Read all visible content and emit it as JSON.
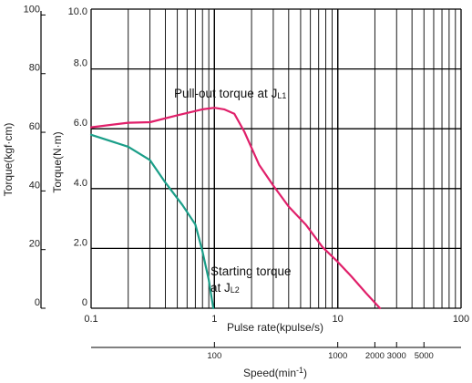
{
  "chart_data": {
    "type": "line",
    "x_scale": "log",
    "xlim": [
      0.1,
      100
    ],
    "ylim": [
      0,
      10
    ],
    "xlabel": "Pulse rate(kpulse/s)",
    "ylabel": "Torque(N·m)",
    "y2label": "Torque(kgf·cm)",
    "x2label": "Speed(min",
    "x2label_sup": "-1",
    "x2label_close": ")",
    "x_ticks": [
      "0.1",
      "1",
      "10",
      "100"
    ],
    "y_ticks": [
      "0",
      "2.0",
      "4.0",
      "6.0",
      "8.0",
      "10.0"
    ],
    "y_ticks_values": [
      0,
      2,
      4,
      6,
      8,
      10
    ],
    "y2_ticks": [
      "0",
      "20",
      "40",
      "60",
      "80",
      "100"
    ],
    "y2_ticks_values": [
      0,
      20,
      40,
      60,
      80,
      100
    ],
    "y2lim": [
      0,
      102
    ],
    "speed_ticks": [
      {
        "label": "100",
        "x_pulse": 1.0
      },
      {
        "label": "1000",
        "x_pulse": 10.0
      },
      {
        "label": "2000",
        "x_pulse": 20.0
      },
      {
        "label": "3000",
        "x_pulse": 30.0
      },
      {
        "label": "5000",
        "x_pulse": 50.0
      }
    ],
    "grid": true,
    "series": [
      {
        "name": "Pull-out torque at J",
        "subscript": "L1",
        "color": "#e0206a",
        "points": [
          [
            0.1,
            6.05
          ],
          [
            0.2,
            6.2
          ],
          [
            0.3,
            6.22
          ],
          [
            0.5,
            6.45
          ],
          [
            0.8,
            6.65
          ],
          [
            1.0,
            6.7
          ],
          [
            1.2,
            6.65
          ],
          [
            1.45,
            6.5
          ],
          [
            1.75,
            5.9
          ],
          [
            2.3,
            4.8
          ],
          [
            3.0,
            4.1
          ],
          [
            4.0,
            3.4
          ],
          [
            5.5,
            2.8
          ],
          [
            7.5,
            2.05
          ],
          [
            10.0,
            1.55
          ],
          [
            13.0,
            1.05
          ],
          [
            17.0,
            0.5
          ],
          [
            22.0,
            0.0
          ]
        ]
      },
      {
        "name": "Starting torque\nat J",
        "subscript": "L2",
        "color": "#1a9e88",
        "points": [
          [
            0.1,
            5.8
          ],
          [
            0.2,
            5.4
          ],
          [
            0.3,
            4.95
          ],
          [
            0.4,
            4.2
          ],
          [
            0.55,
            3.45
          ],
          [
            0.7,
            2.8
          ],
          [
            0.8,
            1.9
          ],
          [
            0.9,
            0.95
          ],
          [
            0.98,
            0.0
          ]
        ]
      }
    ],
    "annotations": [
      {
        "text": "Pull-out torque at J",
        "sub": "L1",
        "x": 0.68,
        "y": 7.0
      },
      {
        "line1": "Starting torque",
        "text": "at J",
        "sub": "L2",
        "x": 0.98,
        "y": 0.5
      }
    ]
  }
}
